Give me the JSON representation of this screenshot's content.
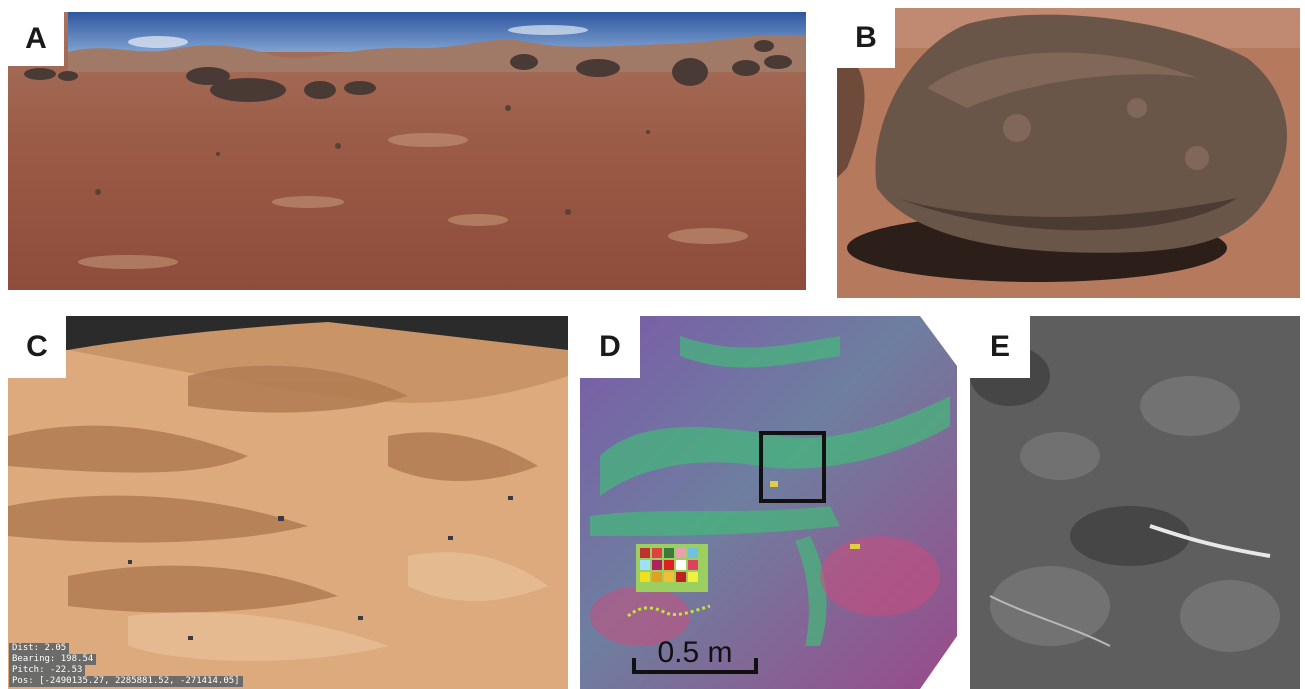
{
  "panels": {
    "a": {
      "label": "A",
      "subject": "desert-plain-panorama"
    },
    "b": {
      "label": "B",
      "subject": "boulder-closeup"
    },
    "c": {
      "label": "C",
      "subject": "rock-outcrop-3d-model"
    },
    "d": {
      "label": "D",
      "subject": "false-color-rock-map"
    },
    "e": {
      "label": "E",
      "subject": "grayscale-rock-detail"
    }
  },
  "viewer_readout": {
    "dist": "Dist: 2.05",
    "bearing": "Bearing: 198.54",
    "pitch": "Pitch: -22.53",
    "pos": "Pos: [-2490135.27, 2285881.52, -271414.05]"
  },
  "scale_bar": {
    "label": "0.5 m"
  },
  "colors": {
    "sky": "#3e66a8",
    "sand": "#9c6048",
    "outcrop": "#d9a475",
    "selection_box": "#111111"
  }
}
